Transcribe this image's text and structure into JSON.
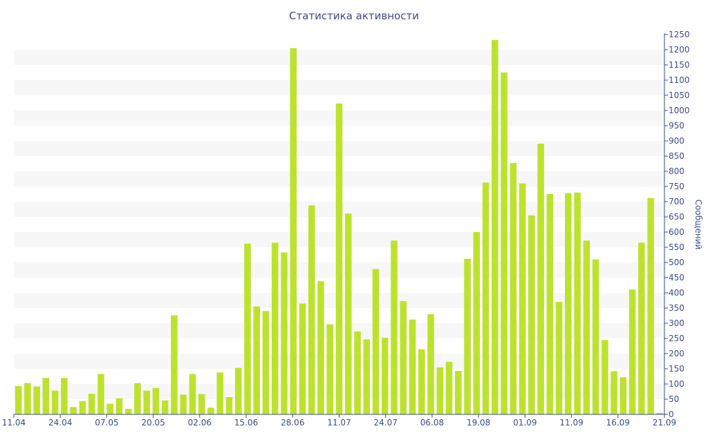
{
  "chart_data": {
    "type": "bar",
    "title": "Статистика активности",
    "xlabel": "",
    "ylabel": "Сообщений",
    "ylim": [
      0,
      1250
    ],
    "yticks": [
      0,
      50,
      100,
      150,
      200,
      250,
      300,
      350,
      400,
      450,
      500,
      550,
      600,
      650,
      700,
      750,
      800,
      850,
      900,
      950,
      1000,
      1050,
      1100,
      1150,
      1200,
      1250
    ],
    "y_axis_side": "right",
    "x_tick_labels": [
      "11.04",
      "24.04",
      "07.05",
      "20.05",
      "02.06",
      "15.06",
      "28.06",
      "11.07",
      "24.07",
      "06.08",
      "19.08",
      "01.09",
      "11.09",
      "16.09",
      "21.09"
    ],
    "values": [
      93,
      103,
      92,
      120,
      78,
      120,
      24,
      44,
      68,
      133,
      35,
      53,
      18,
      103,
      78,
      87,
      46,
      326,
      65,
      133,
      67,
      22,
      138,
      57,
      153,
      562,
      355,
      340,
      565,
      533,
      1205,
      365,
      688,
      438,
      296,
      1023,
      661,
      273,
      247,
      478,
      252,
      572,
      373,
      312,
      214,
      330,
      155,
      173,
      143,
      512,
      600,
      763,
      1232,
      1125,
      827,
      760,
      655,
      891,
      725,
      370,
      728,
      730,
      572,
      510,
      245,
      142,
      122,
      411,
      565,
      712,
      5
    ],
    "bar_color": "#bde22e",
    "band_color": "#f7f7f7",
    "axis_color": "#3a4a8c",
    "grid": "alternating horizontal bands"
  }
}
